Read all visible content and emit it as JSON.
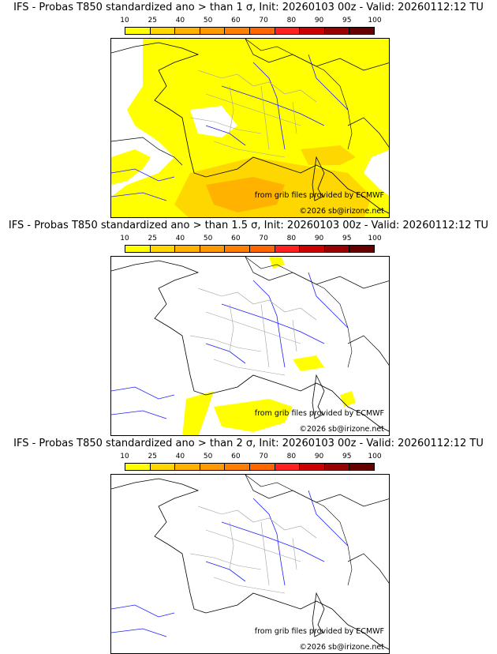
{
  "panels": [
    {
      "title": "IFS - Probas T850  standardized ano > than 1 σ, Init: 20260103 00z - Valid: 20260112:12 TU",
      "coverage": "high"
    },
    {
      "title": "IFS - Probas T850  standardized ano > than 1.5 σ, Init: 20260103 00z - Valid: 20260112:12 TU",
      "coverage": "medium"
    },
    {
      "title": "IFS - Probas T850  standardized ano > than 2 σ, Init: 20260103 00z - Valid: 20260112:12 TU",
      "coverage": "none"
    }
  ],
  "colorbar": {
    "ticks": [
      "10",
      "25",
      "40",
      "50",
      "60",
      "70",
      "80",
      "90",
      "95",
      "100"
    ],
    "colors": [
      "#ffff00",
      "#ffd700",
      "#ffb300",
      "#ff9900",
      "#ff8000",
      "#ff6600",
      "#ff2020",
      "#cc0000",
      "#990000",
      "#660000"
    ]
  },
  "credit_line1": "from grib files provided by ECMWF",
  "credit_line2": "©2026 sb@irizone.net",
  "fill_colors": {
    "yellow": "#ffff00",
    "gold": "#ffd700",
    "orange": "#ffb300"
  },
  "line_colors": {
    "coast": "#000000",
    "river": "#2020ff",
    "border": "#a0a0a0"
  }
}
